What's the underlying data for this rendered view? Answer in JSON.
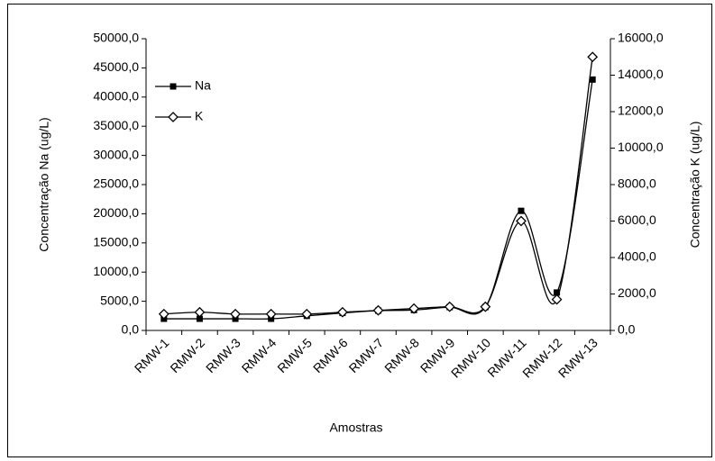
{
  "chart_data": {
    "type": "line",
    "x_label": "Amostras",
    "y_label": "Concentração Na (ug/L)",
    "y2_label": "Concentração K (ug/L)",
    "categories": [
      "RMW-1",
      "RMW-2",
      "RMW-3",
      "RMW-4",
      "RMW-5",
      "RMW-6",
      "RMW-7",
      "RMW-8",
      "RMW-9",
      "RMW-10",
      "RMW-11",
      "RMW-12",
      "RMW-13"
    ],
    "series": [
      {
        "name": "Na",
        "color": "#000000",
        "marker": "square",
        "values": [
          2000,
          2000,
          2000,
          2000,
          2500,
          3000,
          3400,
          3500,
          4000,
          4000,
          20500,
          6500,
          43000
        ]
      },
      {
        "name": "K",
        "color": "#000000",
        "marker": "diamond",
        "axis": "y2",
        "values": [
          900,
          1000,
          900,
          900,
          900,
          1000,
          1100,
          1200,
          1300,
          1300,
          6000,
          1700,
          15000
        ]
      }
    ],
    "ylim": [
      0,
      50000
    ],
    "yticks": [
      {
        "value": 0,
        "label": "0,0"
      },
      {
        "value": 5000,
        "label": "5000,0"
      },
      {
        "value": 10000,
        "label": "10000,0"
      },
      {
        "value": 15000,
        "label": "15000,0"
      },
      {
        "value": 20000,
        "label": "20000,0"
      },
      {
        "value": 25000,
        "label": "25000,0"
      },
      {
        "value": 30000,
        "label": "30000,0"
      },
      {
        "value": 35000,
        "label": "35000,0"
      },
      {
        "value": 40000,
        "label": "40000,0"
      },
      {
        "value": 45000,
        "label": "45000,0"
      },
      {
        "value": 50000,
        "label": "50000,0"
      }
    ],
    "y2lim": [
      0,
      16000
    ],
    "y2ticks": [
      {
        "value": 0,
        "label": "0,0"
      },
      {
        "value": 2000,
        "label": "2000,0"
      },
      {
        "value": 4000,
        "label": "4000,0"
      },
      {
        "value": 6000,
        "label": "6000,0"
      },
      {
        "value": 8000,
        "label": "8000,0"
      },
      {
        "value": 10000,
        "label": "10000,0"
      },
      {
        "value": 12000,
        "label": "12000,0"
      },
      {
        "value": 14000,
        "label": "14000,0"
      },
      {
        "value": 16000,
        "label": "16000,0"
      }
    ],
    "smooth": true,
    "legend": "upper left"
  }
}
